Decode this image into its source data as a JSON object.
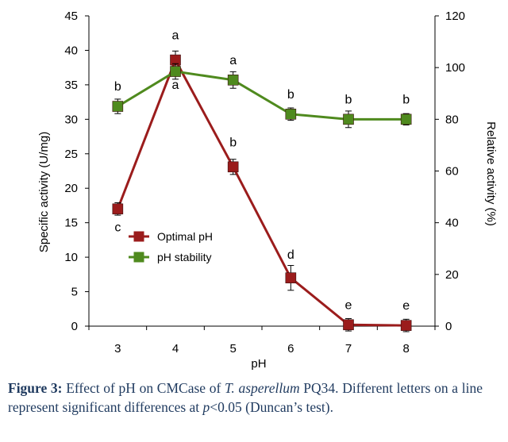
{
  "chart_data": {
    "type": "line",
    "xlabel": "pH",
    "ylabel_left": "Specific activity (U/mg)",
    "ylabel_right": "Relative activity (%)",
    "x": [
      3,
      4,
      5,
      6,
      7,
      8
    ],
    "x_tick_labels": [
      "3",
      "4",
      "5",
      "6",
      "7",
      "8"
    ],
    "ylim_left": [
      0,
      45
    ],
    "yticks_left": [
      "0",
      "5",
      "10",
      "15",
      "20",
      "25",
      "30",
      "35",
      "40",
      "45"
    ],
    "ylim_right": [
      0,
      120
    ],
    "yticks_right": [
      "0",
      "20",
      "40",
      "60",
      "80",
      "100",
      "120"
    ],
    "grid": false,
    "legend_position": "center-left",
    "series": [
      {
        "name": "Optimal pH",
        "axis": "left",
        "color": "#9b1c1c",
        "marker": "square",
        "values": [
          17,
          38.6,
          23.1,
          7,
          0.2,
          0.1
        ],
        "errors": [
          0.9,
          1.3,
          1.1,
          1.8,
          0.9,
          0.9
        ],
        "letters": [
          "c",
          "a",
          "b",
          "d",
          "e",
          "e"
        ]
      },
      {
        "name": "pH stability",
        "axis": "right",
        "color": "#4f8a1e",
        "marker": "square",
        "values": [
          85,
          98.5,
          95.2,
          82,
          80,
          80
        ],
        "errors": [
          2.8,
          3.0,
          3.2,
          2.4,
          3.2,
          2.2
        ],
        "letters": [
          "b",
          "a",
          "a",
          "b",
          "b",
          "b"
        ]
      }
    ]
  },
  "caption": {
    "label": "Figure 3:",
    "text_1": " Effect of pH on CMCase of ",
    "species": "T. asperellum",
    "text_2": " PQ34. Different letters on a line represent significant differences at ",
    "pval": "p",
    "text_3": "<0.05 (Duncan’s test)."
  }
}
